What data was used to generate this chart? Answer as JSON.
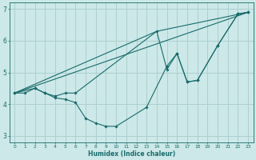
{
  "xlabel": "Humidex (Indice chaleur)",
  "bg_color": "#cce8e8",
  "grid_color": "#aacccc",
  "line_color": "#1a6b6b",
  "xlim": [
    -0.5,
    23.5
  ],
  "ylim": [
    2.8,
    7.2
  ],
  "xticks": [
    0,
    1,
    2,
    3,
    4,
    5,
    6,
    7,
    8,
    9,
    10,
    11,
    12,
    13,
    14,
    15,
    16,
    17,
    18,
    19,
    20,
    21,
    22,
    23
  ],
  "yticks": [
    3,
    4,
    5,
    6,
    7
  ],
  "lines": [
    {
      "x": [
        0,
        1,
        2,
        3,
        4,
        5,
        6,
        7,
        8,
        9,
        10,
        13,
        15,
        16,
        17,
        18,
        20,
        22,
        23
      ],
      "y": [
        4.35,
        4.35,
        4.5,
        4.35,
        4.2,
        4.15,
        4.05,
        3.55,
        3.4,
        3.3,
        3.3,
        3.9,
        5.2,
        5.6,
        4.7,
        4.75,
        5.85,
        6.85,
        6.9
      ],
      "marker": true
    },
    {
      "x": [
        0,
        2,
        3,
        4,
        5,
        6,
        14,
        15,
        16,
        17,
        18,
        20,
        22,
        23
      ],
      "y": [
        4.35,
        4.5,
        4.35,
        4.25,
        4.35,
        4.35,
        6.3,
        5.1,
        5.6,
        4.7,
        4.75,
        5.85,
        6.85,
        6.9
      ],
      "marker": true
    },
    {
      "x": [
        0,
        23
      ],
      "y": [
        4.35,
        6.9
      ],
      "marker": false
    },
    {
      "x": [
        0,
        14,
        23
      ],
      "y": [
        4.35,
        6.3,
        6.9
      ],
      "marker": false
    }
  ]
}
